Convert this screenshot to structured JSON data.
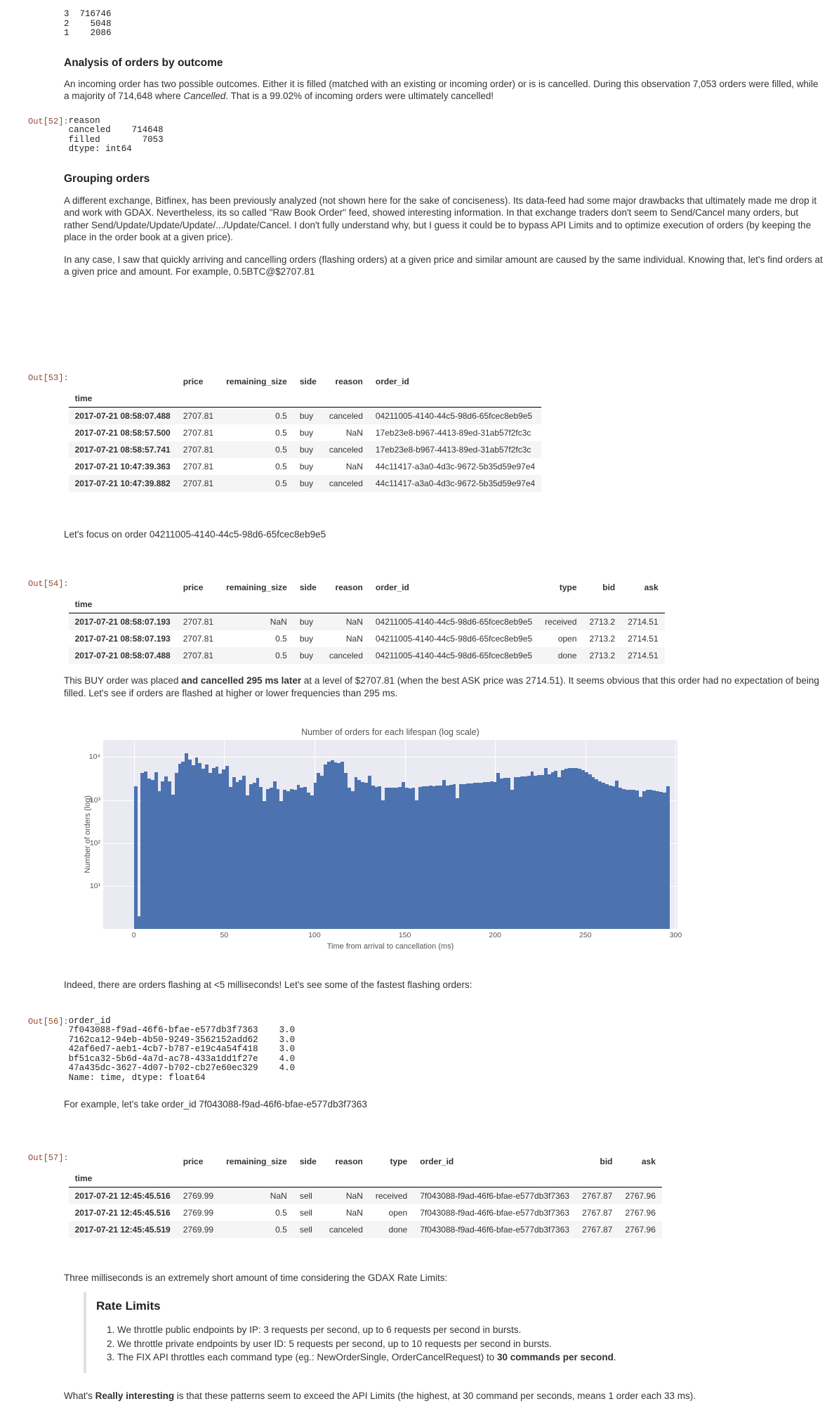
{
  "prompts": {
    "out52": "Out[52]:",
    "out53": "Out[53]:",
    "out54": "Out[54]:",
    "out56": "Out[56]:",
    "out57": "Out[57]:"
  },
  "outputs": {
    "head_counts": "3  716746\n2    5048\n1    2086",
    "out52_text": "reason\ncanceled    714648\nfilled        7053\ndtype: int64",
    "out56_text": "order_id\n7f043088-f9ad-46f6-bfae-e577db3f7363    3.0\n7162ca12-94eb-4b50-9249-3562152add62    3.0\n42af6ed7-aeb1-4cb7-b787-e19c4a54f418    3.0\nbf51ca32-5b6d-4a7d-ac78-433a1dd1f27e    4.0\n47a435dc-3627-4d07-b702-cb27e60ec329    4.0\nName: time, dtype: float64"
  },
  "headings": {
    "outcome": "Analysis of orders by outcome",
    "grouping": "Grouping orders",
    "rate_limits": "Rate Limits"
  },
  "paragraphs": {
    "outcome": {
      "t1": "An incoming order has two possible outcomes. Either it is filled (matched with an existing or incoming order) or is is cancelled. During this observation 7,053 orders were filled, while a majority of 714,648 where ",
      "i": "Cancelled",
      "t2": ". That is a 99.02% of incoming orders were ultimately cancelled!"
    },
    "grouping1": "A different exchange, Bitfinex, has been previously analyzed (not shown here for the sake of conciseness). Its data-feed had some major drawbacks that ultimately made me drop it and work with GDAX. Nevertheless, its so called \"Raw Book Order\" feed, showed interesting information. In that exchange traders don't seem to Send/Cancel many orders, but rather Send/Update/Update/Update/.../Update/Cancel. I don't fully understand why, but I guess it could be to bypass API Limits and to optimize execution of orders (by keeping the place in the order book at a given price).",
    "grouping2": "In any case, I saw that quickly arriving and cancelling orders (flashing orders) at a given price and similar amount are caused by the same individual. Knowing that, let's find orders at a given price and amount. For example, 0.5BTC@$2707.81",
    "focus": "Let's focus on order 04211005-4140-44c5-98d6-65fcec8eb9e5",
    "buy": {
      "t1": "This BUY order was placed ",
      "b": "and cancelled 295 ms later",
      "t2": " at a level of $2707.81 (when the best ASK price was 2714.51). It seems obvious that this order had no expectation of being filled. Let's see if orders are flashed at higher or lower frequencies than 295 ms."
    },
    "indeed": "Indeed, there are orders flashing at <5 milliseconds! Let's see some of the fastest flashing orders:",
    "example": "For example, let's take order_id 7f043088-f9ad-46f6-bfae-e577db3f7363",
    "three_ms": "Three milliseconds is an extremely short amount of time considering the GDAX Rate Limits:",
    "rate_items": {
      "li1": "We throttle public endpoints by IP: 3 requests per second, up to 6 requests per second in bursts.",
      "li2": "We throttle private endpoints by user ID: 5 requests per second, up to 10 requests per second in bursts.",
      "li3": {
        "t1": "The FIX API throttles each command type (eg.: NewOrderSingle, OrderCancelRequest) to ",
        "b": "30 commands per second",
        "t2": "."
      }
    },
    "final": {
      "t1": "What's ",
      "b": "Really interesting",
      "t2": " is that these patterns seem to exceed the API Limits (the highest, at 30 command per seconds, means 1 order each 33 ms)."
    }
  },
  "tables": {
    "t53": {
      "index_label": "time",
      "columns": [
        "price",
        "remaining_size",
        "side",
        "reason",
        "order_id"
      ],
      "align": [
        "l",
        "r",
        "l",
        "r",
        "l"
      ],
      "rows": [
        [
          "2017-07-21 08:58:07.488",
          "2707.81",
          "0.5",
          "buy",
          "canceled",
          "04211005-4140-44c5-98d6-65fcec8eb9e5"
        ],
        [
          "2017-07-21 08:58:57.500",
          "2707.81",
          "0.5",
          "buy",
          "NaN",
          "17eb23e8-b967-4413-89ed-31ab57f2fc3c"
        ],
        [
          "2017-07-21 08:58:57.741",
          "2707.81",
          "0.5",
          "buy",
          "canceled",
          "17eb23e8-b967-4413-89ed-31ab57f2fc3c"
        ],
        [
          "2017-07-21 10:47:39.363",
          "2707.81",
          "0.5",
          "buy",
          "NaN",
          "44c11417-a3a0-4d3c-9672-5b35d59e97e4"
        ],
        [
          "2017-07-21 10:47:39.882",
          "2707.81",
          "0.5",
          "buy",
          "canceled",
          "44c11417-a3a0-4d3c-9672-5b35d59e97e4"
        ]
      ]
    },
    "t54": {
      "index_label": "time",
      "columns": [
        "price",
        "remaining_size",
        "side",
        "reason",
        "order_id",
        "type",
        "bid",
        "ask"
      ],
      "align": [
        "l",
        "r",
        "l",
        "r",
        "l",
        "r",
        "r",
        "r"
      ],
      "rows": [
        [
          "2017-07-21 08:58:07.193",
          "2707.81",
          "NaN",
          "buy",
          "NaN",
          "04211005-4140-44c5-98d6-65fcec8eb9e5",
          "received",
          "2713.2",
          "2714.51"
        ],
        [
          "2017-07-21 08:58:07.193",
          "2707.81",
          "0.5",
          "buy",
          "NaN",
          "04211005-4140-44c5-98d6-65fcec8eb9e5",
          "open",
          "2713.2",
          "2714.51"
        ],
        [
          "2017-07-21 08:58:07.488",
          "2707.81",
          "0.5",
          "buy",
          "canceled",
          "04211005-4140-44c5-98d6-65fcec8eb9e5",
          "done",
          "2713.2",
          "2714.51"
        ]
      ]
    },
    "t57": {
      "index_label": "time",
      "columns": [
        "price",
        "remaining_size",
        "side",
        "reason",
        "type",
        "order_id",
        "bid",
        "ask"
      ],
      "align": [
        "l",
        "r",
        "l",
        "r",
        "r",
        "l",
        "r",
        "r"
      ],
      "rows": [
        [
          "2017-07-21 12:45:45.516",
          "2769.99",
          "NaN",
          "sell",
          "NaN",
          "received",
          "7f043088-f9ad-46f6-bfae-e577db3f7363",
          "2767.87",
          "2767.96"
        ],
        [
          "2017-07-21 12:45:45.516",
          "2769.99",
          "0.5",
          "sell",
          "NaN",
          "open",
          "7f043088-f9ad-46f6-bfae-e577db3f7363",
          "2767.87",
          "2767.96"
        ],
        [
          "2017-07-21 12:45:45.519",
          "2769.99",
          "0.5",
          "sell",
          "canceled",
          "done",
          "7f043088-f9ad-46f6-bfae-e577db3f7363",
          "2767.87",
          "2767.96"
        ]
      ]
    }
  },
  "chart_data": {
    "type": "bar",
    "subtype": "histogram",
    "title": "Number of orders for each lifespan (log scale)",
    "xlabel": "Time from arrival to cancellation (ms)",
    "ylabel": "Number of orders (log)",
    "yscale": "log",
    "xlim": [
      -17,
      301
    ],
    "ylim": [
      1,
      25000
    ],
    "xticks": [
      0,
      50,
      100,
      150,
      200,
      250,
      300
    ],
    "yticks": [
      10,
      100,
      1000,
      10000
    ],
    "ytick_labels": [
      "10¹",
      "10²",
      "10³",
      "10⁴"
    ],
    "grid": true,
    "bg_color": "#eaeaf2",
    "bar_color": "#4c72b0",
    "grid_color": "#ffffff",
    "x_bin_start_ms": 0,
    "x_bin_width_ms": 1.9,
    "values": [
      2100,
      2,
      4300,
      4600,
      3100,
      2900,
      4400,
      1600,
      2700,
      3500,
      2700,
      1350,
      4300,
      7000,
      7700,
      12300,
      8800,
      6500,
      9700,
      7200,
      5300,
      6600,
      4300,
      5600,
      5900,
      4100,
      5200,
      6300,
      2000,
      3400,
      2600,
      2900,
      3600,
      1300,
      2300,
      2500,
      3300,
      2000,
      950,
      1800,
      1900,
      2700,
      1800,
      950,
      1700,
      1600,
      1800,
      1700,
      2250,
      1900,
      2000,
      1500,
      1300,
      2500,
      4300,
      3700,
      6600,
      7800,
      8300,
      7500,
      7200,
      7900,
      4300,
      1900,
      1600,
      3400,
      2900,
      2600,
      2500,
      3600,
      2200,
      2000,
      2100,
      1000,
      1900,
      1900,
      1950,
      1900,
      2000,
      2600,
      1900,
      1850,
      1950,
      1000,
      2000,
      2050,
      2100,
      2150,
      2100,
      2200,
      2150,
      2900,
      2200,
      2250,
      2300,
      1100,
      2300,
      2350,
      2400,
      2450,
      2500,
      2550,
      2500,
      2600,
      2650,
      2700,
      2600,
      4300,
      3200,
      3300,
      3300,
      1700,
      3400,
      3450,
      3500,
      3550,
      3600,
      4600,
      3700,
      3750,
      3800,
      5600,
      4000,
      4500,
      4800,
      3400,
      5000,
      5300,
      5500,
      5600,
      5500,
      5400,
      5000,
      4500,
      4000,
      3400,
      3000,
      2700,
      2500,
      2300,
      2200,
      2100,
      2800,
      1900,
      1800,
      1750,
      1700,
      1700,
      1650,
      1200,
      1600,
      1700,
      1700,
      1650,
      1600,
      1550,
      1500,
      2100
    ]
  }
}
